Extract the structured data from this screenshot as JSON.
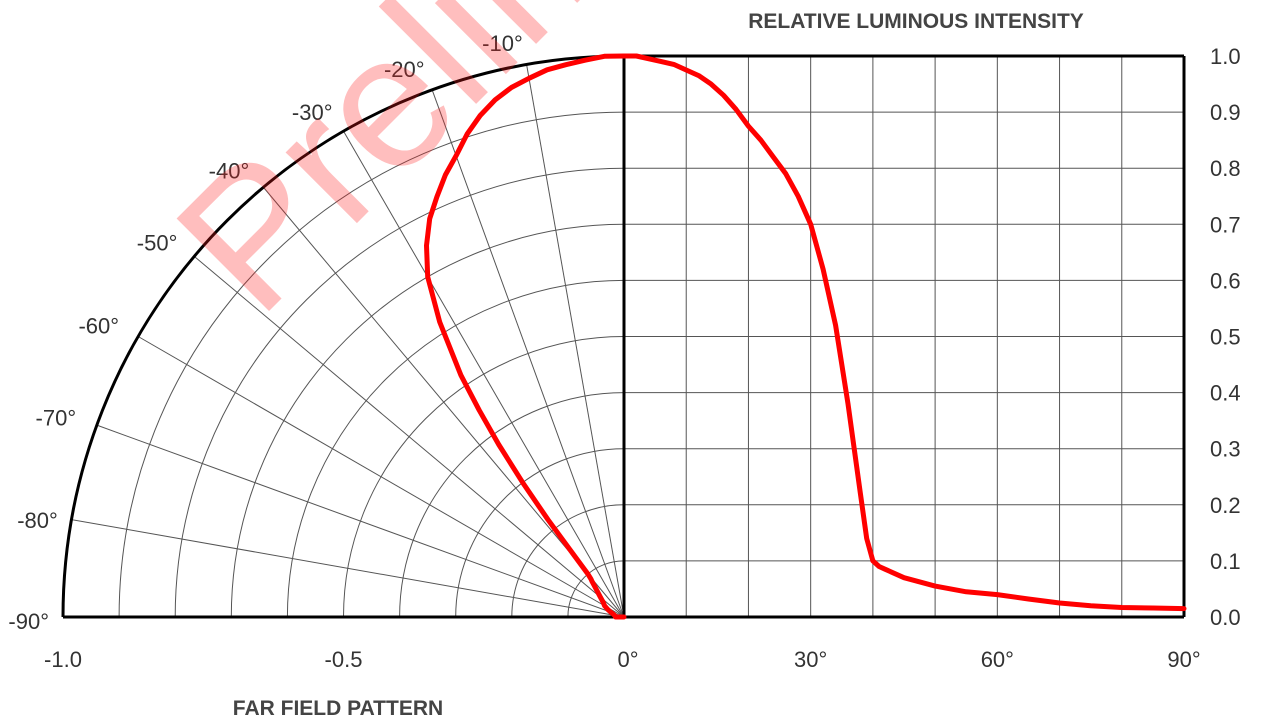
{
  "chart_data": {
    "type": "line",
    "polar": true,
    "title": "RELATIVE LUMINOUS INTENSITY",
    "xlabel": "FAR FIELD PATTERN",
    "watermark": "Prelim",
    "line_color": "#ff0000",
    "x_axis_left_labels": [
      "-1.0",
      "-0.5"
    ],
    "x_axis_angle_labels": [
      "0°",
      "30°",
      "60°",
      "90°"
    ],
    "angle_labels": [
      "-10°",
      "-20°",
      "-30°",
      "-40°",
      "-50°",
      "-60°",
      "-70°",
      "-80°",
      "-90°"
    ],
    "y_ticks": [
      "1.0",
      "0.9",
      "0.8",
      "0.7",
      "0.6",
      "0.5",
      "0.4",
      "0.3",
      "0.2",
      "0.1",
      "0.0"
    ],
    "angle_range": [
      -90,
      90
    ],
    "intensity_range": [
      0,
      1
    ],
    "grid": true,
    "series": [
      {
        "x": [
          0,
          2,
          4,
          6,
          8,
          10,
          12,
          14,
          16,
          18,
          20,
          22,
          24,
          26,
          28,
          30,
          32,
          34,
          35,
          36,
          37,
          38,
          39,
          40,
          41,
          42,
          45,
          50,
          55,
          60,
          65,
          70,
          75,
          80,
          85,
          90
        ],
        "y": [
          1.0,
          1.0,
          0.995,
          0.99,
          0.985,
          0.975,
          0.965,
          0.95,
          0.93,
          0.905,
          0.875,
          0.85,
          0.82,
          0.79,
          0.75,
          0.7,
          0.62,
          0.52,
          0.45,
          0.38,
          0.3,
          0.22,
          0.14,
          0.1,
          0.09,
          0.085,
          0.07,
          0.055,
          0.045,
          0.04,
          0.032,
          0.025,
          0.02,
          0.017,
          0.016,
          0.015
        ]
      }
    ]
  }
}
